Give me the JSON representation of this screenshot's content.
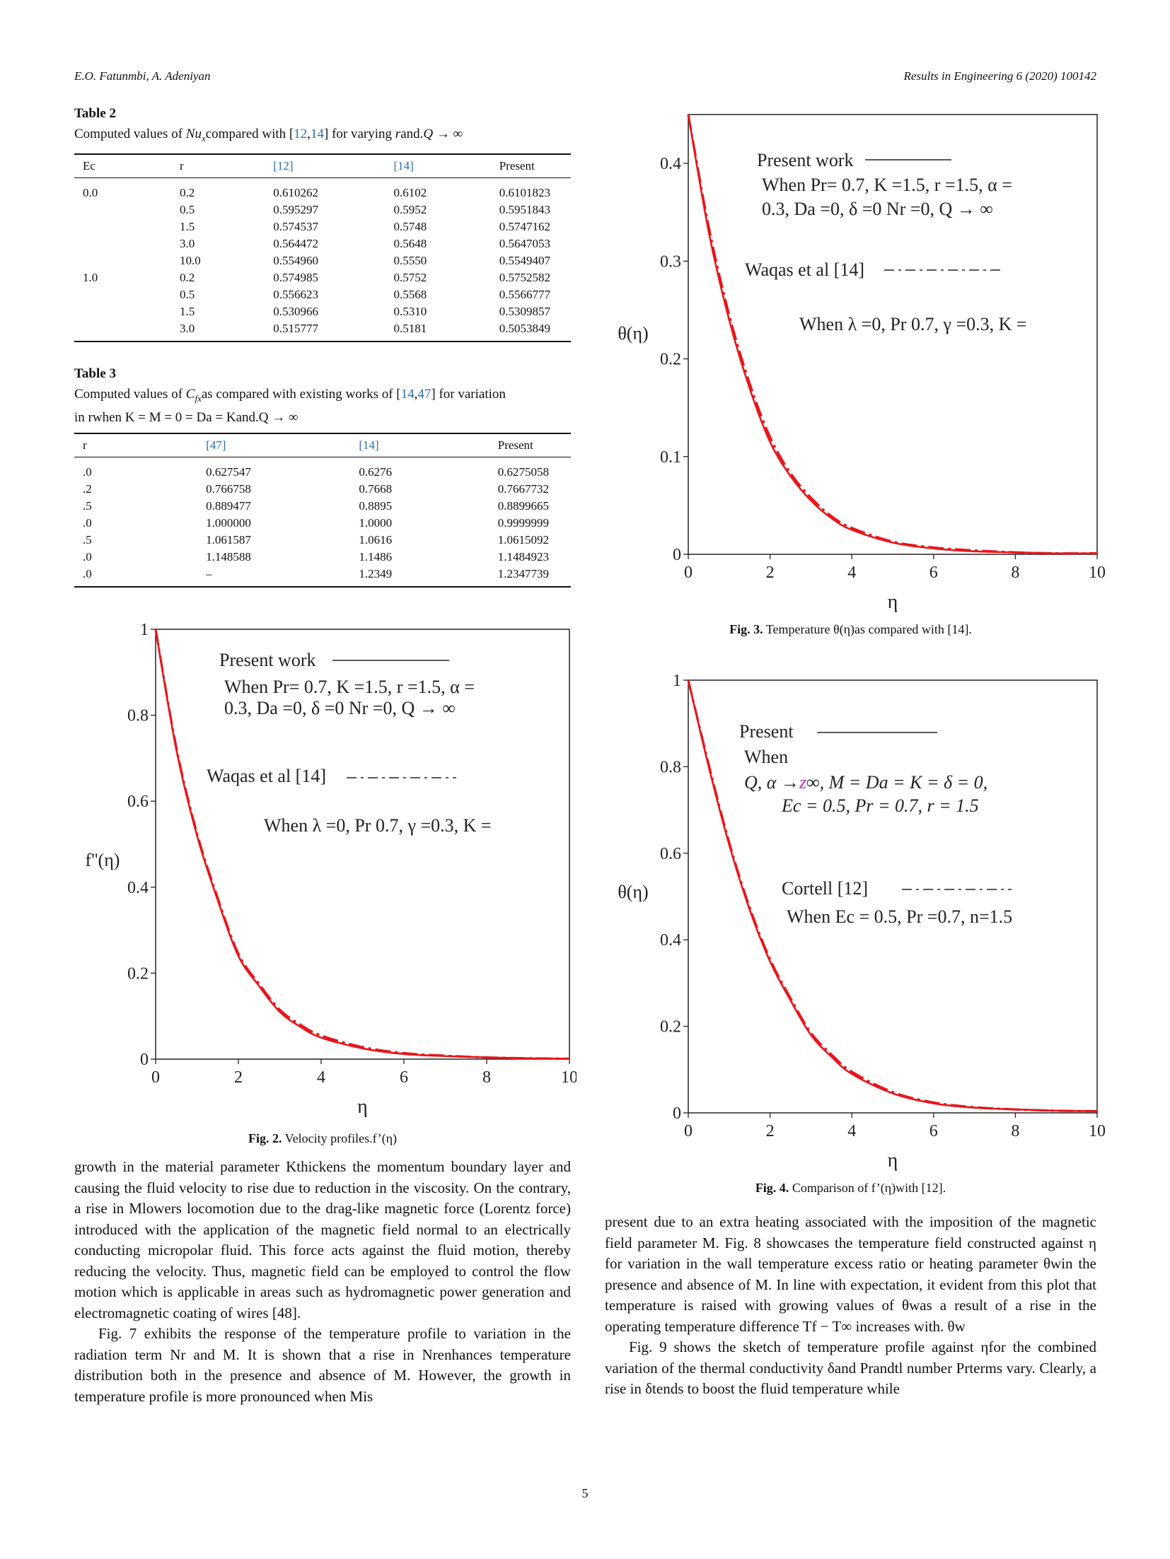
{
  "header": {
    "authors": "E.O. Fatunmbi, A. Adeniyan",
    "journal": "Results in Engineering 6 (2020) 100142"
  },
  "table2": {
    "label": "Table 2",
    "caption_parts": [
      "Computed values of ",
      "Nu",
      "x",
      "compared with [",
      "12",
      ",",
      "14",
      "] for varying ",
      "r",
      "and.",
      "Q → ∞"
    ],
    "headers": [
      "Ec",
      "r",
      "[12]",
      "[14]",
      "Present"
    ],
    "rows": [
      [
        "0.0",
        "0.2",
        "0.610262",
        "0.6102",
        "0.6101823"
      ],
      [
        "",
        "0.5",
        "0.595297",
        "0.5952",
        "0.5951843"
      ],
      [
        "",
        "1.5",
        "0.574537",
        "0.5748",
        "0.5747162"
      ],
      [
        "",
        "3.0",
        "0.564472",
        "0.5648",
        "0.5647053"
      ],
      [
        "",
        "10.0",
        "0.554960",
        "0.5550",
        "0.5549407"
      ],
      [
        "1.0",
        "0.2",
        "0.574985",
        "0.5752",
        "0.5752582"
      ],
      [
        "",
        "0.5",
        "0.556623",
        "0.5568",
        "0.5566777"
      ],
      [
        "",
        "1.5",
        "0.530966",
        "0.5310",
        "0.5309857"
      ],
      [
        "",
        "3.0",
        "0.515777",
        "0.5181",
        "0.5053849"
      ]
    ]
  },
  "table3": {
    "label": "Table 3",
    "caption_line1_parts": [
      "Computed values of ",
      "C",
      "fx",
      "as compared with existing works of [",
      "14",
      ",",
      "47",
      "] for variation"
    ],
    "caption_line2": "in rwhen K = M = 0 = Da = Kand.Q → ∞",
    "headers": [
      "r",
      "[47]",
      "[14]",
      "Present"
    ],
    "rows": [
      [
        ".0",
        "0.627547",
        "0.6276",
        "0.6275058"
      ],
      [
        ".2",
        "0.766758",
        "0.7668",
        "0.7667732"
      ],
      [
        ".5",
        "0.889477",
        "0.8895",
        "0.8899665"
      ],
      [
        ".0",
        "1.000000",
        "1.0000",
        "0.9999999"
      ],
      [
        ".5",
        "1.061587",
        "1.0616",
        "1.0615092"
      ],
      [
        ".0",
        "1.148588",
        "1.1486",
        "1.1484923"
      ],
      [
        ".0",
        "–",
        "1.2349",
        "1.2347739"
      ]
    ]
  },
  "figures": {
    "fig2": {
      "caption_label": "Fig. 2.",
      "caption_text": "Velocity profiles.f’(η)",
      "annotations": {
        "l1": "Present work",
        "l2": "When Pr= 0.7, K =1.5, r =1.5, α =",
        "l3": "0.3, Da =0, δ =0 Nr =0, Q → ∞",
        "l4": "Waqas et al [14]",
        "l5": "When λ =0, Pr 0.7, γ =0.3, K ="
      }
    },
    "fig3": {
      "caption_label": "Fig. 3.",
      "caption_text": "Temperature θ(η)as compared with [14].",
      "annotations": {
        "l1": "Present work",
        "l2": "When Pr= 0.7, K =1.5, r =1.5, α =",
        "l3": "0.3, Da =0, δ =0 Nr =0, Q → ∞",
        "l4": "Waqas et al [14]",
        "l5": "When λ =0, Pr 0.7, γ =0.3, K ="
      }
    },
    "fig4": {
      "caption_label": "Fig. 4.",
      "caption_text": "Comparison of f’(η)with [12].",
      "annotations": {
        "l1": "Present",
        "l2": "When",
        "l3a": "Q, α →",
        "l3z": "z",
        "l3b": "∞, M = Da = K = δ = 0,",
        "l4": "Ec = 0.5, Pr = 0.7, r = 1.5",
        "l5": "Cortell [12]",
        "l6": "When Ec = 0.5, Pr =0.7, n=1.5"
      }
    }
  },
  "chart_data": [
    {
      "type": "line",
      "title": "",
      "xlabel": "η",
      "ylabel": "f''(η)",
      "xlim": [
        0,
        10
      ],
      "ylim": [
        0,
        1
      ],
      "xticks": [
        "0",
        "2",
        "4",
        "6",
        "8",
        "10"
      ],
      "yticks": [
        "0",
        "0.2",
        "0.4",
        "0.6",
        "0.8",
        "1"
      ],
      "x": [
        0,
        0.5,
        1,
        1.5,
        2,
        2.5,
        3,
        3.5,
        4,
        5,
        6,
        7,
        8,
        9,
        10
      ],
      "series": [
        {
          "name": "Present work",
          "style": "solid",
          "color": "#e8151b",
          "values": [
            1.0,
            0.72,
            0.52,
            0.37,
            0.24,
            0.17,
            0.11,
            0.075,
            0.05,
            0.025,
            0.012,
            0.007,
            0.004,
            0.002,
            0.001
          ]
        },
        {
          "name": "Waqas et al [14]",
          "style": "dashdot",
          "color": "#e8151b",
          "values": [
            1.0,
            0.725,
            0.525,
            0.375,
            0.245,
            0.175,
            0.115,
            0.08,
            0.055,
            0.028,
            0.014,
            0.008,
            0.004,
            0.002,
            0.001
          ]
        }
      ]
    },
    {
      "type": "line",
      "title": "",
      "xlabel": "η",
      "ylabel": "θ(η)",
      "xlim": [
        0,
        10
      ],
      "ylim": [
        0,
        0.45
      ],
      "xticks": [
        "0",
        "2",
        "4",
        "6",
        "8",
        "10"
      ],
      "yticks": [
        "0",
        "0.1",
        "0.2",
        "0.3",
        "0.4"
      ],
      "x": [
        0,
        0.5,
        1,
        1.5,
        2,
        2.5,
        3,
        3.5,
        4,
        5,
        6,
        7,
        8,
        9,
        10
      ],
      "series": [
        {
          "name": "Present work",
          "style": "solid",
          "color": "#e8151b",
          "values": [
            0.45,
            0.33,
            0.24,
            0.17,
            0.115,
            0.08,
            0.055,
            0.037,
            0.025,
            0.012,
            0.006,
            0.003,
            0.002,
            0.001,
            0.001
          ]
        },
        {
          "name": "Waqas et al [14]",
          "style": "dashdot",
          "color": "#e8151b",
          "values": [
            0.45,
            0.335,
            0.245,
            0.175,
            0.12,
            0.083,
            0.058,
            0.039,
            0.027,
            0.013,
            0.007,
            0.004,
            0.002,
            0.001,
            0.001
          ]
        }
      ]
    },
    {
      "type": "line",
      "title": "",
      "xlabel": "η",
      "ylabel": "θ(η)",
      "xlim": [
        0,
        10
      ],
      "ylim": [
        0,
        1
      ],
      "xticks": [
        "0",
        "2",
        "4",
        "6",
        "8",
        "10"
      ],
      "yticks": [
        "0",
        "0.2",
        "0.4",
        "0.6",
        "0.8",
        "1"
      ],
      "x": [
        0,
        0.5,
        1,
        1.5,
        2,
        2.5,
        3,
        3.5,
        4,
        5,
        6,
        7,
        8,
        9,
        10
      ],
      "series": [
        {
          "name": "Present",
          "style": "solid",
          "color": "#e8151b",
          "values": [
            1.0,
            0.8,
            0.62,
            0.47,
            0.35,
            0.26,
            0.18,
            0.13,
            0.09,
            0.045,
            0.022,
            0.012,
            0.008,
            0.005,
            0.004
          ]
        },
        {
          "name": "Cortell [12]",
          "style": "dashdot",
          "color": "#e8151b",
          "values": [
            1.0,
            0.805,
            0.625,
            0.475,
            0.355,
            0.265,
            0.185,
            0.135,
            0.095,
            0.048,
            0.024,
            0.013,
            0.008,
            0.005,
            0.004
          ]
        }
      ]
    }
  ],
  "text": {
    "left_col": [
      "growth in the material parameter Kthickens the momentum boundary layer and causing the fluid velocity to rise due to reduction in the viscosity. On the contrary, a rise in Mlowers locomotion due to the drag-like magnetic force (Lorentz force) introduced with the application of the magnetic field normal to an electrically conducting micropolar fluid. This force acts against the fluid motion, thereby reducing the velocity. Thus, magnetic field can be employed to control the flow motion which is applicable in areas such as hydromagnetic power generation and electromagnetic coating of wires [48].",
      "Fig. 7 exhibits the response of the temperature profile to variation in the radiation term Nr and M. It is shown that a rise in Nrenhances temperature distribution both in the presence and absence of M. However, the growth in temperature profile is more pronounced when Mis"
    ],
    "right_col": [
      "present due to an extra heating associated with the imposition of the magnetic field parameter M. Fig. 8 showcases the temperature field constructed against η for variation in the wall temperature excess ratio or heating parameter θwin the presence and absence of M. In line with expectation, it evident from this plot that temperature is raised with growing values of θwas a result of a rise in the operating temperature difference Tf − T∞ increases with. θw",
      "Fig. 9 shows the sketch of temperature profile against ηfor the combined variation of the thermal conductivity δand Prandtl number Prterms vary. Clearly, a rise in δtends to boost the fluid temperature while"
    ]
  },
  "page_number": "5"
}
